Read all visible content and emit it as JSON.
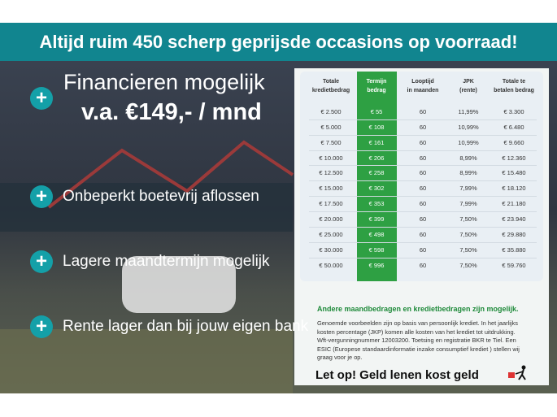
{
  "header": {
    "title": "Altijd ruim 450 scherp geprijsde occasions op voorraad!"
  },
  "promo": {
    "title": "Financieren mogelijk",
    "price": "v.a. €149,- / mnd"
  },
  "benefits": [
    "Onbeperkt boetevrij aflossen",
    "Lagere maandtermijn mogelijk",
    "Rente lager dan bij jouw eigen bank"
  ],
  "table": {
    "columns": [
      [
        "Totale",
        "kredietbedrag"
      ],
      [
        "Termijn",
        "bedrag"
      ],
      [
        "Looptijd",
        "in maanden"
      ],
      [
        "JPK",
        "(rente)"
      ],
      [
        "Totale te",
        "betalen bedrag"
      ]
    ],
    "rows": [
      [
        "€ 2.500",
        "€ 55",
        "60",
        "11,99%",
        "€ 3.300"
      ],
      [
        "€ 5.000",
        "€ 108",
        "60",
        "10,99%",
        "€ 6.480"
      ],
      [
        "€ 7.500",
        "€ 161",
        "60",
        "10,99%",
        "€ 9.660"
      ],
      [
        "€ 10.000",
        "€ 206",
        "60",
        "8,99%",
        "€ 12.360"
      ],
      [
        "€ 12.500",
        "€ 258",
        "60",
        "8,99%",
        "€ 15.480"
      ],
      [
        "€ 15.000",
        "€ 302",
        "60",
        "7,99%",
        "€ 18.120"
      ],
      [
        "€ 17.500",
        "€ 353",
        "60",
        "7,99%",
        "€ 21.180"
      ],
      [
        "€ 20.000",
        "€ 399",
        "60",
        "7,50%",
        "€ 23.940"
      ],
      [
        "€ 25.000",
        "€ 498",
        "60",
        "7,50%",
        "€ 29.880"
      ],
      [
        "€ 30.000",
        "€ 598",
        "60",
        "7,50%",
        "€ 35.880"
      ],
      [
        "€ 50.000",
        "€ 996",
        "60",
        "7,50%",
        "€ 59.760"
      ]
    ]
  },
  "notes": {
    "heading": "Andere maandbedragen en kredietbedragen zijn mogelijk.",
    "lines": [
      "Genoemde voorbeelden zijn op basis van persoonlijk krediet. In het jaarlijks",
      "kosten percentage (JKP) komen alle kosten van het krediet tot uitdrukking.",
      "Wft-vergunningnummer 12003200. Toetsing en registratie BKR te Tiel. Een",
      "ESIC (Europese standaardinformatie inzake consumptief krediet ) stellen wij",
      "graag voor je op."
    ],
    "warning": "Let op! Geld lenen kost geld"
  }
}
